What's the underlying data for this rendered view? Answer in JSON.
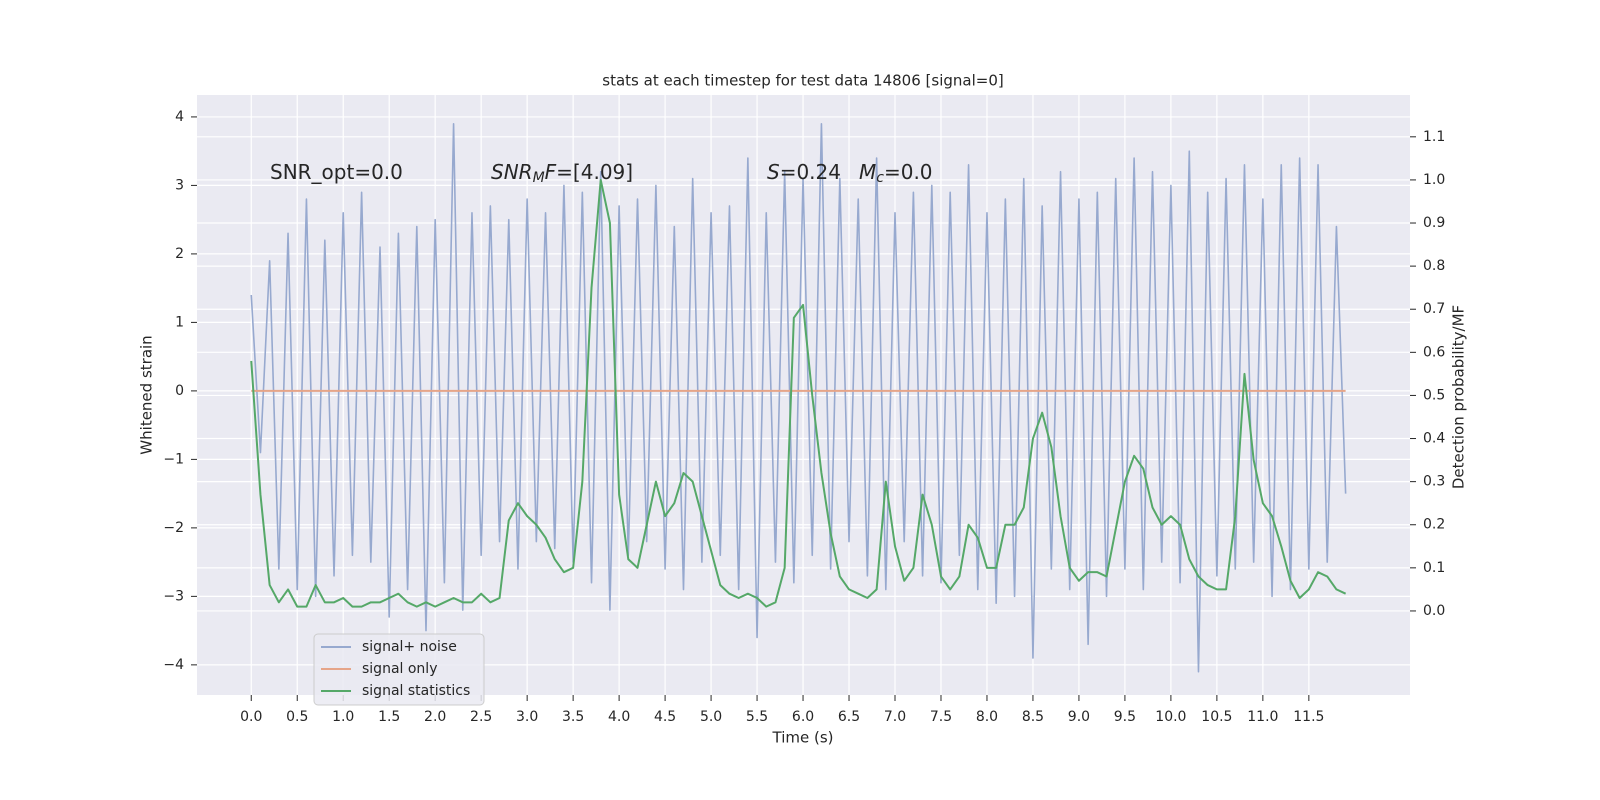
{
  "chart_data": {
    "type": "line",
    "title": "stats at each timestep for test data 14806 [signal=0]",
    "x_label": "Time (s)",
    "y_label": "Whitened strain",
    "y2_label": "Detection probability/MF",
    "annotations": [
      {
        "parts": [
          {
            "text": "SNR_opt=0.0",
            "style": "normal"
          }
        ]
      },
      {
        "parts": [
          {
            "text": "SNR",
            "style": "italic"
          },
          {
            "text": "M",
            "style": "sub"
          },
          {
            "text": "F",
            "style": "italic"
          },
          {
            "text": "=[4.09]",
            "style": "normal"
          }
        ]
      },
      {
        "parts": [
          {
            "text": "S",
            "style": "italic"
          },
          {
            "text": "=0.24",
            "style": "normal"
          }
        ]
      },
      {
        "parts": [
          {
            "text": "M",
            "style": "italic"
          },
          {
            "text": "c",
            "style": "sub"
          },
          {
            "text": "=0.0",
            "style": "normal"
          }
        ]
      }
    ],
    "grid": true,
    "background": "#eaeaf2",
    "legend": "lower left",
    "xlim": [
      -0.59,
      12.6
    ],
    "ylim": [
      -4.44,
      4.32
    ],
    "y2lim": [
      -0.195,
      1.197
    ],
    "xticks": [
      {
        "value": 0,
        "label": "0.0"
      },
      0.5,
      {
        "value": 1,
        "label": "1.0"
      },
      1.5,
      {
        "value": 2,
        "label": "2.0"
      },
      2.5,
      {
        "value": 3,
        "label": "3.0"
      },
      3.5,
      {
        "value": 4,
        "label": "4.0"
      },
      4.5,
      {
        "value": 5,
        "label": "5.0"
      },
      5.5,
      {
        "value": 6,
        "label": "6.0"
      },
      6.5,
      {
        "value": 7,
        "label": "7.0"
      },
      7.5,
      {
        "value": 8,
        "label": "8.0"
      },
      8.5,
      {
        "value": 9,
        "label": "9.0"
      },
      9.5,
      {
        "value": 10,
        "label": "10.0"
      },
      10.5,
      {
        "value": 11,
        "label": "11.0"
      },
      11.5
    ],
    "yticks": [
      {
        "value": -4,
        "label": "−4"
      },
      {
        "value": -3,
        "label": "−3"
      },
      {
        "value": -2,
        "label": "−2"
      },
      {
        "value": -1,
        "label": "−1"
      },
      0,
      1,
      2,
      3,
      4
    ],
    "y2ticks": [
      {
        "value": 0,
        "label": "0.0"
      },
      0.1,
      0.2,
      0.3,
      0.4,
      0.5,
      0.6,
      0.7,
      0.8,
      0.9,
      {
        "value": 1,
        "label": "1.0"
      },
      1.1
    ],
    "x": [
      0.0,
      0.1,
      0.2,
      0.3,
      0.4,
      0.5,
      0.6,
      0.7,
      0.8,
      0.9,
      1.0,
      1.1,
      1.2,
      1.3,
      1.4,
      1.5,
      1.6,
      1.7,
      1.8,
      1.9,
      2.0,
      2.1,
      2.2,
      2.3,
      2.4,
      2.5,
      2.6,
      2.7,
      2.8,
      2.9,
      3.0,
      3.1,
      3.2,
      3.3,
      3.4,
      3.5,
      3.6,
      3.7,
      3.8,
      3.9,
      4.0,
      4.1,
      4.2,
      4.3,
      4.4,
      4.5,
      4.6,
      4.7,
      4.8,
      4.9,
      5.0,
      5.1,
      5.2,
      5.3,
      5.4,
      5.5,
      5.6,
      5.7,
      5.8,
      5.9,
      6.0,
      6.1,
      6.2,
      6.3,
      6.4,
      6.5,
      6.6,
      6.7,
      6.8,
      6.9,
      7.0,
      7.1,
      7.2,
      7.3,
      7.4,
      7.5,
      7.6,
      7.7,
      7.8,
      7.9,
      8.0,
      8.1,
      8.2,
      8.3,
      8.4,
      8.5,
      8.6,
      8.7,
      8.8,
      8.9,
      9.0,
      9.1,
      9.2,
      9.3,
      9.4,
      9.5,
      9.6,
      9.7,
      9.8,
      9.9,
      10.0,
      10.1,
      10.2,
      10.3,
      10.4,
      10.5,
      10.6,
      10.7,
      10.8,
      10.9,
      11.0,
      11.1,
      11.2,
      11.3,
      11.4,
      11.5,
      11.6,
      11.7,
      11.8,
      11.9
    ],
    "series": [
      {
        "name": "signal+ noise",
        "color": "#97a9cf",
        "values": [
          1.4,
          -0.9,
          1.9,
          -2.6,
          2.3,
          -2.9,
          2.8,
          -3.0,
          2.2,
          -2.7,
          2.6,
          -2.4,
          2.9,
          -2.5,
          2.1,
          -3.3,
          2.3,
          -2.9,
          2.4,
          -3.5,
          2.5,
          -2.8,
          3.9,
          -3.2,
          2.6,
          -2.4,
          2.7,
          -2.2,
          2.5,
          -2.6,
          2.8,
          -2.2,
          2.6,
          -2.3,
          3.0,
          -2.5,
          2.9,
          -2.8,
          3.2,
          -3.2,
          2.7,
          -2.4,
          2.8,
          -2.2,
          3.0,
          -2.6,
          2.4,
          -2.9,
          3.1,
          -2.5,
          2.6,
          -2.4,
          2.7,
          -2.9,
          3.4,
          -3.6,
          2.6,
          -2.5,
          3.2,
          -2.8,
          3.1,
          -2.4,
          3.9,
          -2.6,
          3.1,
          -2.2,
          2.8,
          -2.7,
          3.4,
          -2.9,
          2.6,
          -2.2,
          2.9,
          -2.7,
          3.0,
          -2.8,
          2.9,
          -2.4,
          3.3,
          -2.9,
          2.6,
          -3.1,
          2.8,
          -3.0,
          3.1,
          -3.9,
          2.7,
          -2.6,
          3.2,
          -2.9,
          2.8,
          -3.7,
          2.9,
          -3.0,
          3.1,
          -2.6,
          3.4,
          -2.9,
          3.2,
          -2.5,
          3.0,
          -2.8,
          3.5,
          -4.1,
          2.9,
          -2.7,
          3.1,
          -2.6,
          3.3,
          -2.5,
          2.8,
          -3.0,
          3.3,
          -2.9,
          3.4,
          -2.6,
          3.3,
          -2.5,
          2.4,
          -1.5
        ]
      },
      {
        "name": "signal only",
        "color": "#e6a589",
        "values": [
          0,
          0,
          0,
          0,
          0,
          0,
          0,
          0,
          0,
          0,
          0,
          0,
          0,
          0,
          0,
          0,
          0,
          0,
          0,
          0,
          0,
          0,
          0,
          0,
          0,
          0,
          0,
          0,
          0,
          0,
          0,
          0,
          0,
          0,
          0,
          0,
          0,
          0,
          0,
          0,
          0,
          0,
          0,
          0,
          0,
          0,
          0,
          0,
          0,
          0,
          0,
          0,
          0,
          0,
          0,
          0,
          0,
          0,
          0,
          0,
          0,
          0,
          0,
          0,
          0,
          0,
          0,
          0,
          0,
          0,
          0,
          0,
          0,
          0,
          0,
          0,
          0,
          0,
          0,
          0,
          0,
          0,
          0,
          0,
          0,
          0,
          0,
          0,
          0,
          0,
          0,
          0,
          0,
          0,
          0,
          0,
          0,
          0,
          0,
          0,
          0,
          0,
          0,
          0,
          0,
          0,
          0,
          0,
          0,
          0,
          0,
          0,
          0,
          0,
          0,
          0,
          0,
          0,
          0,
          0
        ]
      },
      {
        "name": "signal statistics",
        "color": "#55a868",
        "axis": "y2",
        "values": [
          0.58,
          0.27,
          0.06,
          0.02,
          0.05,
          0.01,
          0.01,
          0.06,
          0.02,
          0.02,
          0.03,
          0.01,
          0.01,
          0.02,
          0.02,
          0.03,
          0.04,
          0.02,
          0.01,
          0.02,
          0.01,
          0.02,
          0.03,
          0.02,
          0.02,
          0.04,
          0.02,
          0.03,
          0.21,
          0.25,
          0.22,
          0.2,
          0.17,
          0.12,
          0.09,
          0.1,
          0.3,
          0.75,
          1.0,
          0.9,
          0.27,
          0.12,
          0.1,
          0.2,
          0.3,
          0.22,
          0.25,
          0.32,
          0.3,
          0.22,
          0.14,
          0.06,
          0.04,
          0.03,
          0.04,
          0.03,
          0.01,
          0.02,
          0.1,
          0.68,
          0.71,
          0.5,
          0.32,
          0.18,
          0.08,
          0.05,
          0.04,
          0.03,
          0.05,
          0.3,
          0.15,
          0.07,
          0.1,
          0.27,
          0.2,
          0.08,
          0.05,
          0.08,
          0.2,
          0.17,
          0.1,
          0.1,
          0.2,
          0.2,
          0.24,
          0.4,
          0.46,
          0.38,
          0.22,
          0.1,
          0.07,
          0.09,
          0.09,
          0.08,
          0.19,
          0.3,
          0.36,
          0.33,
          0.24,
          0.2,
          0.22,
          0.2,
          0.12,
          0.08,
          0.06,
          0.05,
          0.05,
          0.22,
          0.55,
          0.35,
          0.25,
          0.22,
          0.15,
          0.07,
          0.03,
          0.05,
          0.09,
          0.08,
          0.05,
          0.04
        ]
      }
    ]
  }
}
